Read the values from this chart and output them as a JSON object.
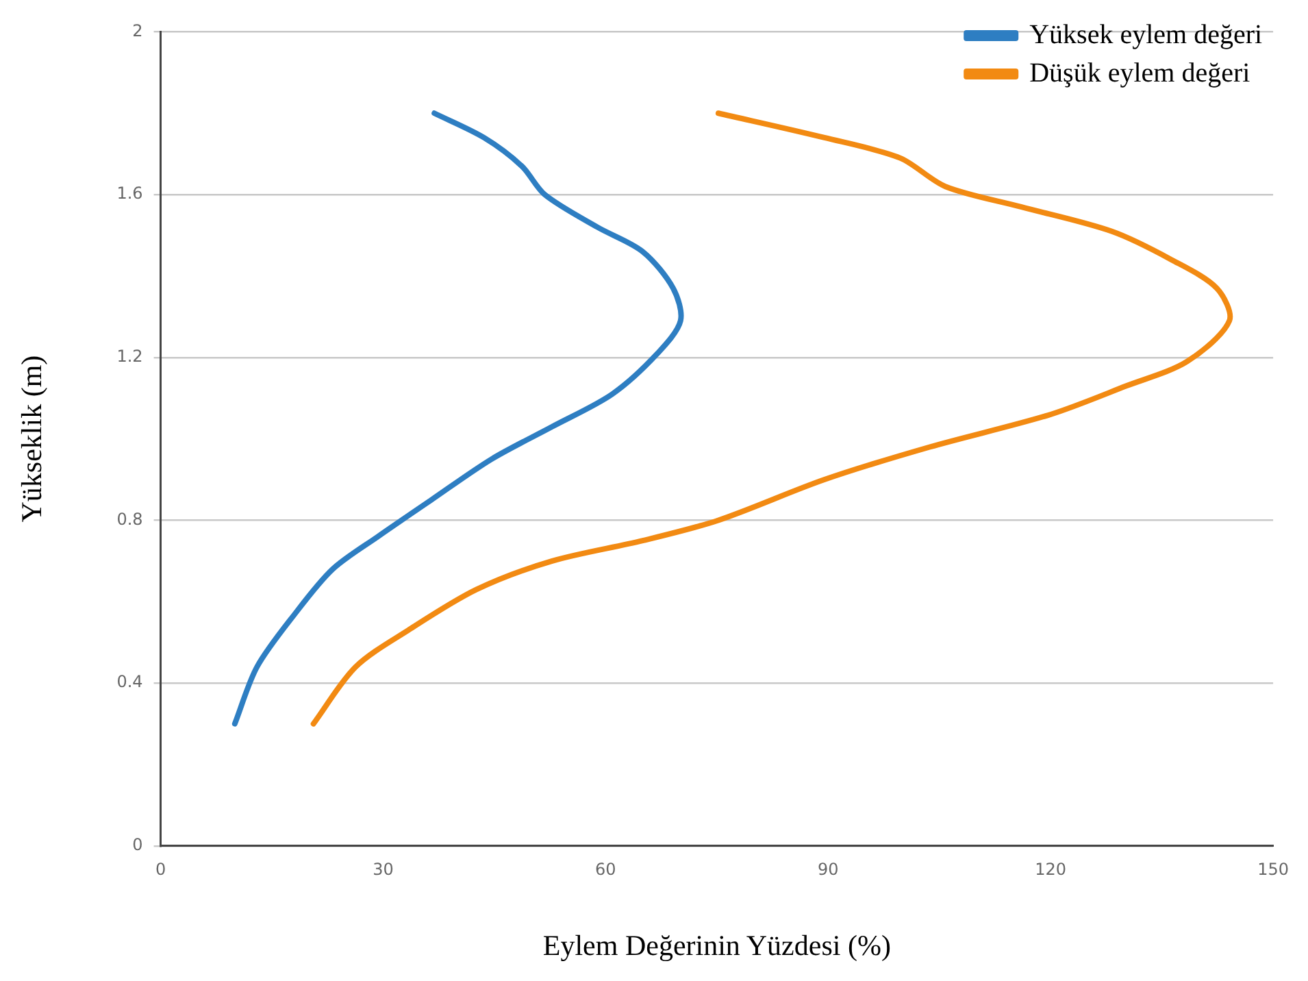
{
  "chart_data": {
    "type": "line",
    "xlabel": "Eylem Değerinin Yüzdesi (%)",
    "ylabel": "Yükseklik (m)",
    "xlim": [
      0,
      150
    ],
    "xticks": [
      0,
      30,
      60,
      90,
      120,
      150
    ],
    "ylim": [
      0,
      2
    ],
    "yticks": [
      0,
      0.4,
      0.8,
      1.2,
      1.6,
      2
    ],
    "grid": "y",
    "legend": "top right",
    "marker": "none",
    "series": [
      {
        "name": "Yüksek eylem değeri",
        "color": "#2e7ec2",
        "x": [
          10.0,
          13.0,
          18.1,
          23.2,
          29.3,
          36.5,
          44.6,
          52.8,
          60.9,
          67.0,
          70.1,
          69.1,
          65.0,
          58.9,
          51.8,
          48.7,
          43.6,
          36.9
        ],
        "values": [
          0.3,
          0.44,
          0.57,
          0.68,
          0.76,
          0.85,
          0.95,
          1.03,
          1.11,
          1.21,
          1.29,
          1.37,
          1.46,
          1.52,
          1.6,
          1.67,
          1.74,
          1.8
        ]
      },
      {
        "name": "Düşük eylem değeri",
        "color": "#f28a12",
        "x": [
          20.6,
          26.3,
          33.4,
          42.6,
          52.8,
          65.0,
          75.2,
          89.5,
          103.7,
          120.0,
          130.2,
          138.4,
          144.1,
          142.4,
          136.3,
          128.2,
          116.0,
          105.8,
          99.7,
          89.5,
          75.2
        ],
        "values": [
          0.3,
          0.44,
          0.53,
          0.63,
          0.7,
          0.75,
          0.8,
          0.9,
          0.98,
          1.06,
          1.13,
          1.19,
          1.29,
          1.37,
          1.44,
          1.51,
          1.57,
          1.62,
          1.69,
          1.74,
          1.8
        ]
      }
    ]
  }
}
